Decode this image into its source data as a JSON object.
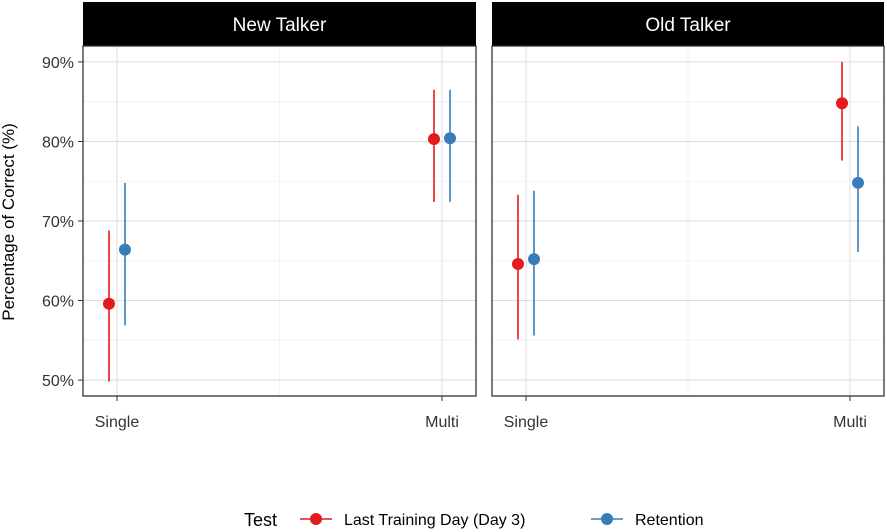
{
  "chart_data": {
    "type": "scatter",
    "subtype": "pointrange",
    "ylabel": "Percentage of Correct (%)",
    "ylim": [
      48,
      92
    ],
    "yticks": [
      50,
      60,
      70,
      80,
      90
    ],
    "ytick_labels": [
      "50%",
      "60%",
      "70%",
      "80%",
      "90%"
    ],
    "categories": [
      "Single",
      "Multi"
    ],
    "grid": true,
    "legend": {
      "title": "Test",
      "placement": "bottom",
      "entries": [
        "Last Training Day (Day 3)",
        "Retention"
      ]
    },
    "colors": {
      "Last Training Day (Day 3)": "#e41a1c",
      "Retention": "#377eb8"
    },
    "panels": [
      {
        "title": "New Talker",
        "series": [
          {
            "name": "Last Training Day (Day 3)",
            "points": [
              {
                "x": "Single",
                "y": 59.6,
                "ymin": 49.8,
                "ymax": 68.8
              },
              {
                "x": "Multi",
                "y": 80.3,
                "ymin": 72.4,
                "ymax": 86.5
              }
            ]
          },
          {
            "name": "Retention",
            "points": [
              {
                "x": "Single",
                "y": 66.4,
                "ymin": 56.9,
                "ymax": 74.8
              },
              {
                "x": "Multi",
                "y": 80.4,
                "ymin": 72.4,
                "ymax": 86.5
              }
            ]
          }
        ]
      },
      {
        "title": "Old Talker",
        "series": [
          {
            "name": "Last Training Day (Day 3)",
            "points": [
              {
                "x": "Single",
                "y": 64.6,
                "ymin": 55.1,
                "ymax": 73.3
              },
              {
                "x": "Multi",
                "y": 84.8,
                "ymin": 77.6,
                "ymax": 90.0
              }
            ]
          },
          {
            "name": "Retention",
            "points": [
              {
                "x": "Single",
                "y": 65.2,
                "ymin": 55.6,
                "ymax": 73.8
              },
              {
                "x": "Multi",
                "y": 74.8,
                "ymin": 66.1,
                "ymax": 81.9
              }
            ]
          }
        ]
      }
    ]
  }
}
